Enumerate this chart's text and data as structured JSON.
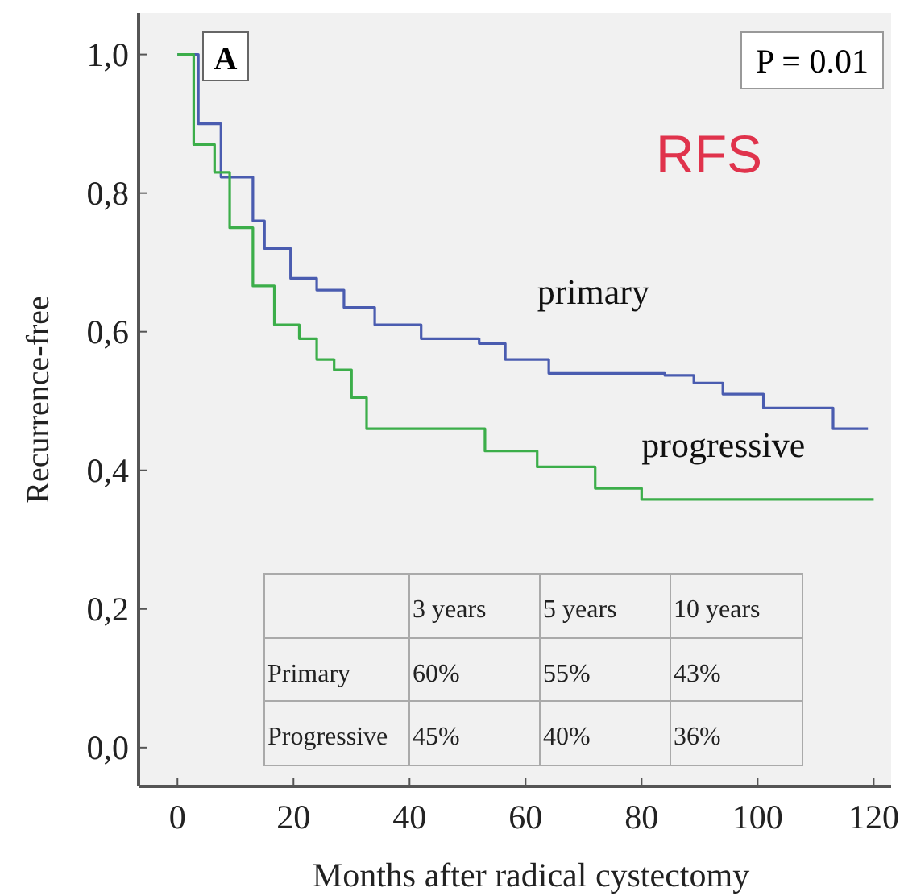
{
  "chart_data": {
    "type": "step",
    "ylabel": "Recurrence-free",
    "xlabel": "Months after radical cystectomy",
    "xlim": [
      -6.7,
      123
    ],
    "xticks": [
      0,
      20,
      40,
      60,
      80,
      100,
      120
    ],
    "ylim": [
      -0.056,
      1.06
    ],
    "yticks": [
      {
        "value": 0,
        "label": "0,0"
      },
      {
        "value": 0.2,
        "label": "0,2"
      },
      {
        "value": 0.4,
        "label": "0,4"
      },
      {
        "value": 0.6,
        "label": "0,6"
      },
      {
        "value": 0.8,
        "label": "0,8"
      },
      {
        "value": 1,
        "label": "1,0"
      }
    ],
    "grid": false,
    "series": [
      {
        "name": "primary",
        "color": "#4a5cb0",
        "x": [
          0,
          3.6,
          7.5,
          13,
          15,
          19.5,
          24,
          28.7,
          34,
          42,
          52,
          56.5,
          64,
          84,
          89,
          94,
          101,
          113,
          119
        ],
        "values": [
          1,
          0.9,
          0.823,
          0.76,
          0.72,
          0.677,
          0.66,
          0.635,
          0.61,
          0.59,
          0.583,
          0.56,
          0.54,
          0.537,
          0.526,
          0.51,
          0.49,
          0.46,
          0.46
        ]
      },
      {
        "name": "progressive",
        "color": "#3cae4a",
        "x": [
          0,
          2.8,
          6.4,
          9,
          13,
          16.7,
          21,
          24,
          27,
          30,
          32.6,
          53,
          62,
          72,
          80,
          120
        ],
        "values": [
          1,
          0.87,
          0.83,
          0.75,
          0.666,
          0.61,
          0.59,
          0.56,
          0.545,
          0.505,
          0.46,
          0.428,
          0.405,
          0.374,
          0.358,
          0.358
        ]
      }
    ],
    "annotations": [
      "A",
      "P = 0.01",
      "RFS",
      "3 years",
      "5 years",
      "10 years",
      "Primary",
      "60%",
      "55%",
      "43%",
      "Progressive",
      "45%",
      "40%",
      "36%"
    ]
  }
}
